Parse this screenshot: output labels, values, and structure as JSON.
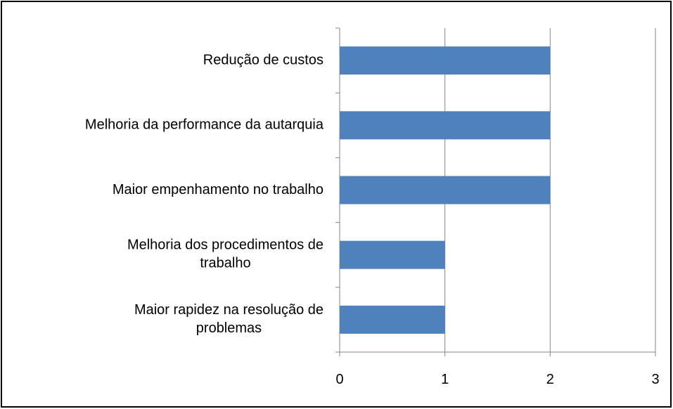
{
  "chart_data": {
    "type": "bar",
    "orientation": "horizontal",
    "categories": [
      "Redução de custos",
      "Melhoria da performance da autarquia",
      "Maior empenhamento no trabalho",
      "Melhoria dos procedimentos de trabalho",
      "Maior rapidez na resolução de problemas"
    ],
    "values": [
      2,
      2,
      2,
      1,
      1
    ],
    "color": "#4f81bd",
    "xlim": [
      0,
      3
    ],
    "xticks": [
      0,
      1,
      2,
      3
    ],
    "grid": true
  }
}
